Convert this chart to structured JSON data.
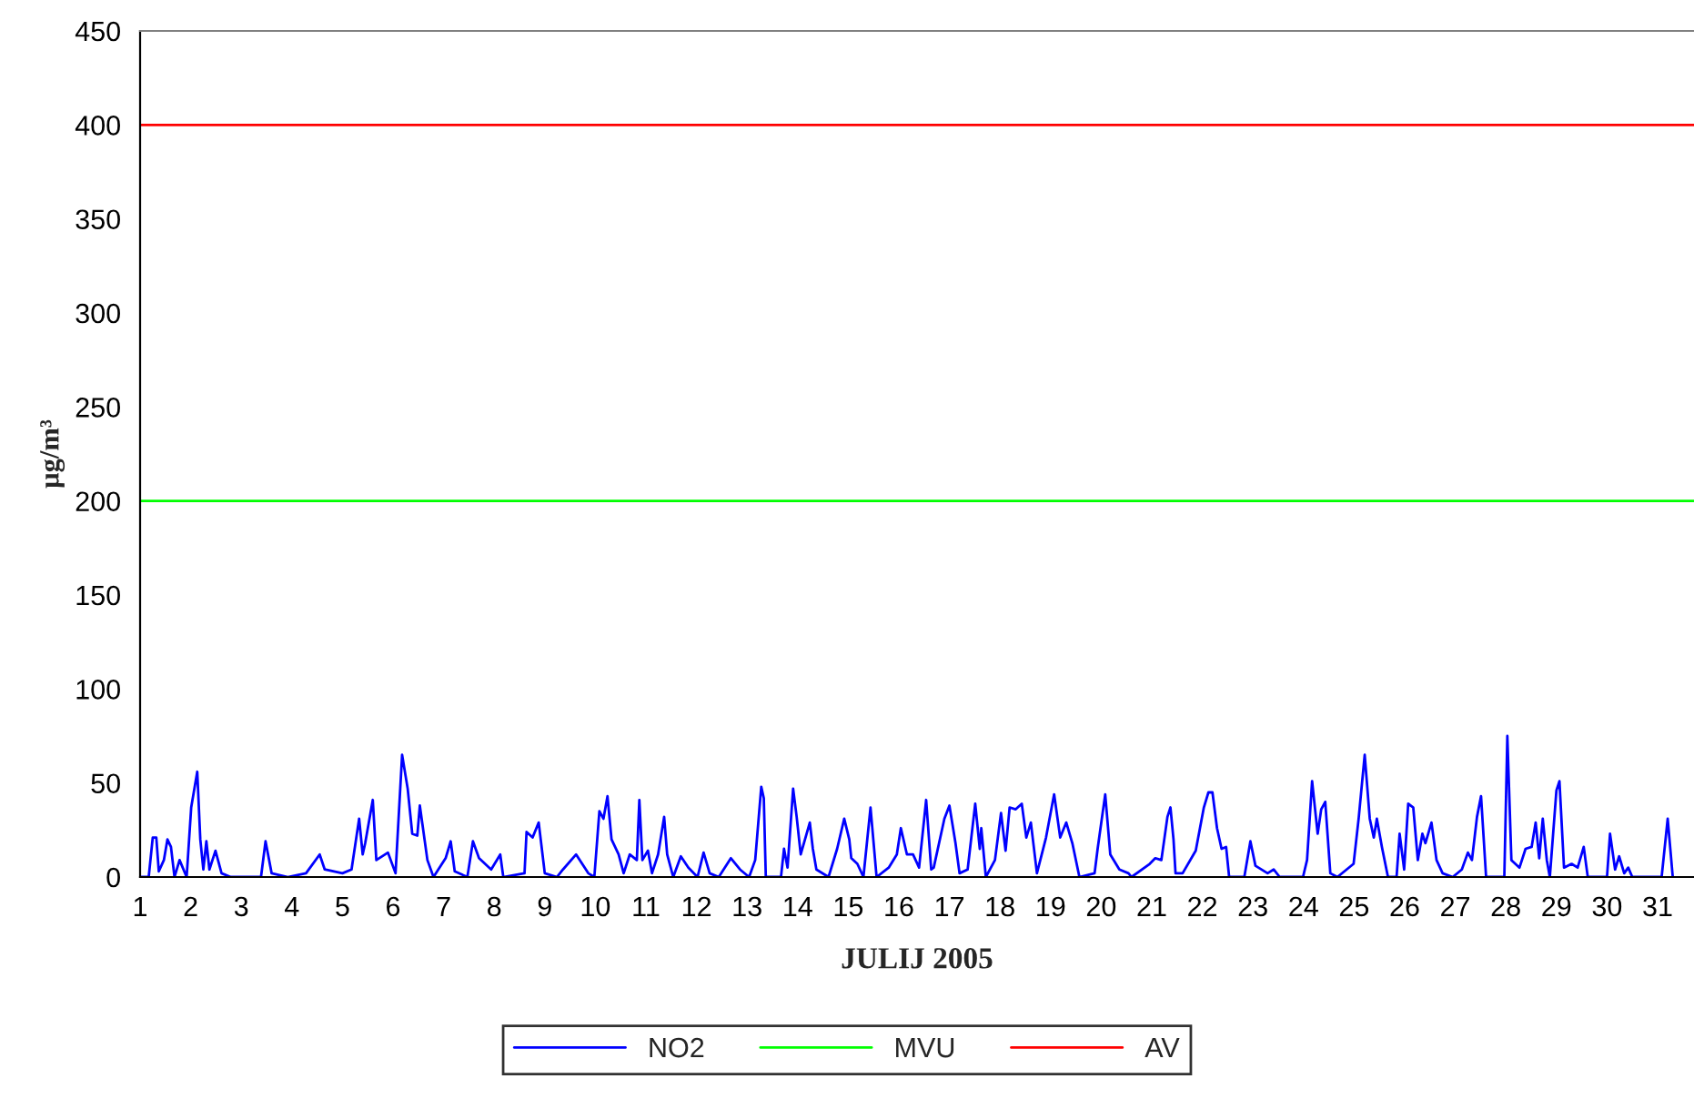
{
  "chart_data": {
    "type": "line",
    "xlabel": "JULIJ 2005",
    "ylabel": "µg/m³",
    "xlim": [
      1,
      31.72
    ],
    "xticks": [
      1,
      2,
      3,
      4,
      5,
      6,
      7,
      8,
      9,
      10,
      11,
      12,
      13,
      14,
      15,
      16,
      17,
      18,
      19,
      20,
      21,
      22,
      23,
      24,
      25,
      26,
      27,
      28,
      29,
      30,
      31
    ],
    "ylim": [
      0,
      450
    ],
    "yticks": [
      0,
      50,
      100,
      150,
      200,
      250,
      300,
      350,
      400,
      450
    ],
    "grid": false,
    "legend": "bottom",
    "marker": "none",
    "line_style": "solid",
    "series": [
      {
        "name": "NO2",
        "color": "#0000ff",
        "x": [
          1.0,
          1.17,
          1.25,
          1.32,
          1.37,
          1.47,
          1.54,
          1.61,
          1.68,
          1.78,
          1.92,
          2.01,
          2.13,
          2.19,
          2.25,
          2.31,
          2.37,
          2.49,
          2.61,
          2.79,
          3.09,
          3.39,
          3.48,
          3.6,
          3.92,
          4.28,
          4.55,
          4.65,
          5.0,
          5.18,
          5.33,
          5.4,
          5.45,
          5.6,
          5.67,
          5.9,
          6.05,
          6.18,
          6.29,
          6.38,
          6.48,
          6.53,
          6.68,
          6.8,
          7.04,
          7.14,
          7.22,
          7.47,
          7.58,
          7.7,
          7.94,
          8.12,
          8.18,
          8.6,
          8.64,
          8.76,
          8.88,
          9.0,
          9.24,
          9.36,
          9.62,
          9.74,
          9.86,
          9.98,
          10.08,
          10.16,
          10.24,
          10.32,
          10.46,
          10.56,
          10.68,
          10.82,
          10.87,
          10.93,
          11.04,
          11.12,
          11.24,
          11.36,
          11.42,
          11.54,
          11.69,
          11.84,
          12.02,
          12.14,
          12.26,
          12.44,
          12.68,
          12.86,
          13.04,
          13.16,
          13.28,
          13.33,
          13.37,
          13.67,
          13.73,
          13.8,
          13.91,
          13.98,
          14.06,
          14.24,
          14.3,
          14.37,
          14.61,
          14.78,
          14.92,
          15.02,
          15.06,
          15.18,
          15.3,
          15.44,
          15.56,
          15.8,
          15.96,
          16.04,
          16.16,
          16.28,
          16.4,
          16.54,
          16.64,
          16.69,
          16.9,
          17.0,
          17.12,
          17.2,
          17.36,
          17.51,
          17.6,
          17.63,
          17.72,
          17.9,
          18.02,
          18.11,
          18.19,
          18.31,
          18.43,
          18.52,
          18.61,
          18.73,
          18.91,
          19.07,
          19.19,
          19.31,
          19.43,
          19.57,
          19.87,
          19.93,
          20.08,
          20.18,
          20.36,
          20.54,
          20.6,
          20.96,
          21.07,
          21.19,
          21.31,
          21.37,
          21.43,
          21.47,
          21.61,
          21.87,
          22.03,
          22.12,
          22.2,
          22.29,
          22.38,
          22.47,
          22.53,
          22.83,
          22.95,
          23.05,
          23.29,
          23.41,
          23.53,
          23.99,
          24.07,
          24.17,
          24.28,
          24.35,
          24.43,
          24.53,
          24.67,
          24.99,
          25.09,
          25.21,
          25.31,
          25.39,
          25.45,
          25.55,
          25.67,
          25.84,
          25.9,
          25.99,
          26.07,
          26.17,
          26.26,
          26.35,
          26.41,
          26.53,
          26.63,
          26.75,
          26.95,
          27.13,
          27.25,
          27.33,
          27.43,
          27.51,
          27.61,
          27.97,
          28.03,
          28.11,
          28.27,
          28.39,
          28.51,
          28.59,
          28.66,
          28.73,
          28.81,
          28.87,
          29.0,
          29.06,
          29.15,
          29.3,
          29.42,
          29.54,
          29.62,
          30.0,
          30.06,
          30.16,
          30.24,
          30.34,
          30.42,
          30.5,
          31.08,
          31.2,
          31.3
        ],
        "values": [
          0,
          0,
          21,
          21,
          3,
          9,
          20,
          16,
          0,
          9,
          0,
          37,
          56,
          20,
          4,
          19,
          4,
          14,
          2,
          0,
          0,
          0,
          19,
          2,
          0,
          2,
          12,
          4,
          2,
          4,
          31,
          12,
          18,
          41,
          9,
          13,
          2,
          65,
          47,
          23,
          22,
          38,
          9,
          0,
          10,
          19,
          3,
          0,
          19,
          10,
          4,
          12,
          0,
          2,
          24,
          21,
          29,
          2,
          0,
          4,
          12,
          7,
          2,
          0,
          35,
          31,
          43,
          20,
          12,
          2,
          12,
          9,
          41,
          9,
          14,
          2,
          12,
          32,
          12,
          0,
          11,
          5,
          0,
          13,
          2,
          0,
          10,
          4,
          0,
          9,
          48,
          42,
          0,
          0,
          15,
          5,
          47,
          32,
          12,
          29,
          15,
          4,
          0,
          15,
          31,
          20,
          10,
          7,
          0,
          37,
          0,
          5,
          12,
          26,
          12,
          12,
          5,
          41,
          4,
          5,
          31,
          38,
          18,
          2,
          4,
          39,
          15,
          26,
          0,
          9,
          34,
          14,
          37,
          36,
          39,
          21,
          29,
          2,
          21,
          44,
          21,
          29,
          18,
          0,
          2,
          15,
          44,
          12,
          4,
          2,
          0,
          7,
          10,
          9,
          32,
          37,
          20,
          2,
          2,
          14,
          37,
          45,
          45,
          26,
          15,
          16,
          0,
          0,
          19,
          6,
          2,
          4,
          0,
          0,
          9,
          51,
          23,
          36,
          40,
          2,
          0,
          7,
          31,
          65,
          31,
          21,
          31,
          16,
          0,
          0,
          23,
          4,
          39,
          37,
          9,
          23,
          18,
          29,
          9,
          2,
          0,
          4,
          13,
          9,
          32,
          43,
          0,
          0,
          75,
          9,
          5,
          15,
          16,
          29,
          10,
          31,
          9,
          0,
          46,
          51,
          5,
          7,
          5,
          16,
          0,
          0,
          23,
          4,
          11,
          2,
          5,
          0,
          0,
          31,
          0
        ]
      },
      {
        "name": "MVU",
        "color": "#00ff00",
        "x": [
          1,
          31.72
        ],
        "values": [
          200,
          200
        ]
      },
      {
        "name": "AV",
        "color": "#ff0000",
        "x": [
          1,
          31.72
        ],
        "values": [
          400,
          400
        ]
      }
    ]
  }
}
